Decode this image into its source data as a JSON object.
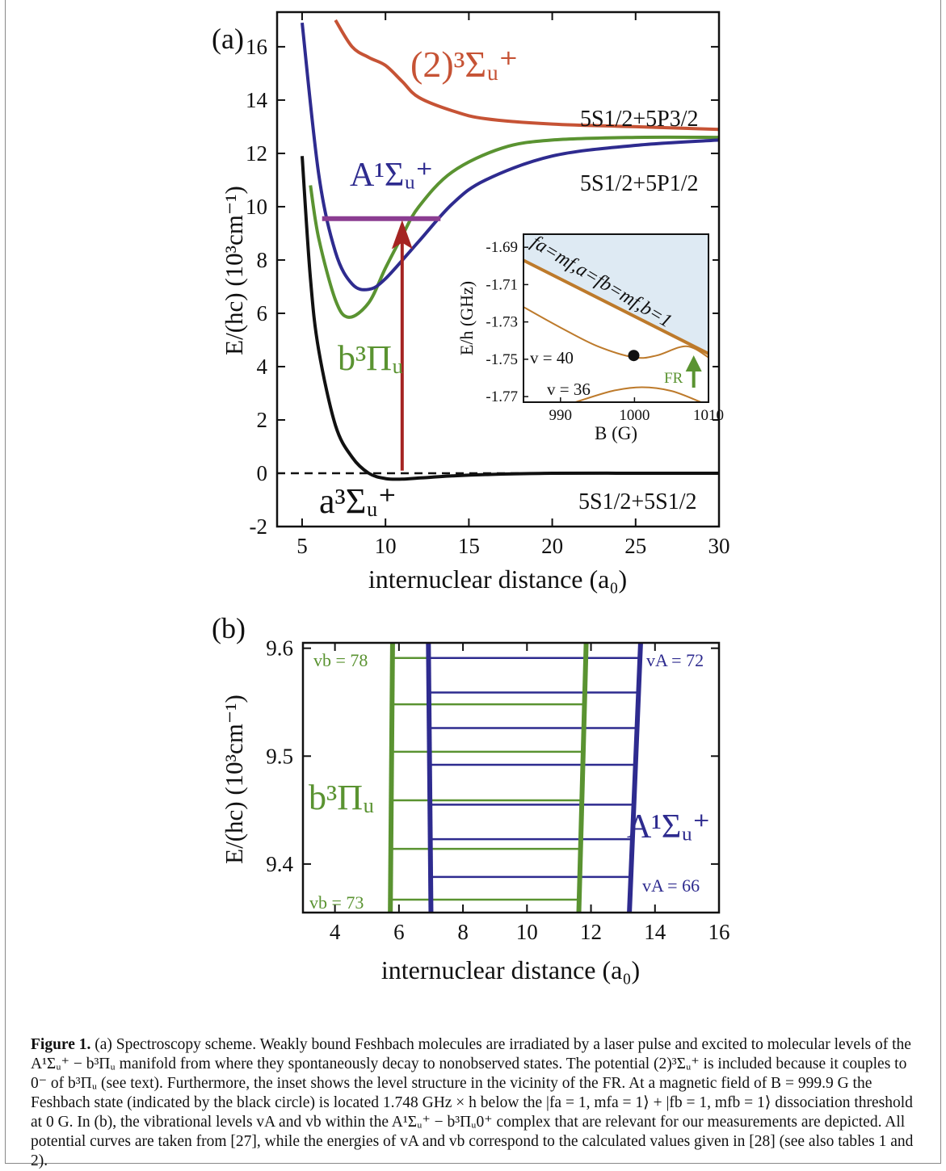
{
  "colors": {
    "black": "#111111",
    "red": "#c65335",
    "green": "#5a9331",
    "blue": "#2e2b8f",
    "purple": "#8b3d91",
    "arrow": "#a52422",
    "inset_fill": "#deeaf3",
    "inset_line": "#bd7a2b"
  },
  "figure": {
    "panel_a": {
      "label": "(a)",
      "xlabel": "internuclear distance (a₀)",
      "ylabel": "E/(hc) (10³cm⁻¹)",
      "xticks": [
        "5",
        "10",
        "15",
        "20",
        "25",
        "30"
      ],
      "yticks": [
        "-2",
        "0",
        "2",
        "4",
        "6",
        "8",
        "10",
        "12",
        "14",
        "16"
      ],
      "curve_labels": {
        "red": "(2)³Σᵤ⁺",
        "blue": "A¹Σᵤ⁺",
        "green": "b³Πᵤ",
        "black": "a³Σᵤ⁺"
      },
      "asymptotes": [
        "5S1/2+5P3/2",
        "5S1/2+5P1/2",
        "5S1/2+5S1/2"
      ]
    },
    "inset": {
      "xlabel": "B (G)",
      "ylabel": "E/h (GHz)",
      "xticks": [
        "990",
        "1000",
        "1010"
      ],
      "yticks": [
        "-1.69",
        "-1.71",
        "-1.73",
        "-1.75",
        "-1.77"
      ],
      "threshold_label": "fa=mf,a=fb=mf,b=1",
      "v40": "v = 40",
      "v36": "v = 36",
      "fr": "FR"
    },
    "panel_b": {
      "label": "(b)",
      "xlabel": "internuclear distance (a₀)",
      "ylabel": "E/(hc) (10³cm⁻¹)",
      "xticks": [
        "4",
        "6",
        "8",
        "10",
        "12",
        "14",
        "16"
      ],
      "yticks": [
        "9.4",
        "9.5",
        "9.6"
      ],
      "vb_top": "vb = 78",
      "vb_bottom": "vb = 73",
      "vA_top": "vA = 72",
      "vA_bottom": "vA = 66",
      "green_label": "b³Πᵤ",
      "blue_label": "A¹Σᵤ⁺"
    }
  },
  "chart_data": [
    {
      "type": "line",
      "title": "(a)",
      "xlabel": "internuclear distance (a0)",
      "ylabel": "E/(hc) (10^3 cm^-1)",
      "xlim": [
        3.5,
        30
      ],
      "ylim": [
        -2,
        17.3
      ],
      "series": [
        {
          "name": "a3Σu+",
          "x": [
            5,
            5.5,
            6,
            7,
            8,
            9,
            10,
            11,
            12,
            14,
            16,
            20,
            25,
            30
          ],
          "y": [
            11.9,
            7.3,
            4.6,
            1.8,
            0.6,
            0.0,
            -0.2,
            -0.22,
            -0.18,
            -0.1,
            -0.05,
            0.0,
            0.0,
            0.0
          ]
        },
        {
          "name": "b3Πu",
          "x": [
            5.5,
            6,
            7,
            7.8,
            9,
            10,
            11,
            12,
            14,
            17,
            20,
            25,
            30
          ],
          "y": [
            10.8,
            8.8,
            6.5,
            5.85,
            6.4,
            7.7,
            8.9,
            10.0,
            11.3,
            12.2,
            12.5,
            12.6,
            12.6
          ]
        },
        {
          "name": "A1Σu+",
          "x": [
            5,
            6,
            7,
            8,
            9,
            10,
            12,
            14,
            16,
            20,
            25,
            30
          ],
          "y": [
            16.9,
            11.2,
            8.3,
            7.1,
            6.9,
            7.3,
            8.7,
            10.1,
            11.0,
            11.9,
            12.3,
            12.5
          ]
        },
        {
          "name": "(2)3Σu+",
          "x": [
            7,
            8,
            9,
            10,
            11,
            12,
            14,
            16,
            20,
            25,
            30
          ],
          "y": [
            17.0,
            16.0,
            15.6,
            15.3,
            14.7,
            14.1,
            13.6,
            13.3,
            13.1,
            13.0,
            12.9
          ]
        }
      ],
      "hline": {
        "y": 9.55,
        "x": [
          6.2,
          13.3
        ]
      },
      "arrow": {
        "x": 11.0,
        "y": [
          0.1,
          9.5
        ]
      },
      "threshold_dashed_y": 0
    },
    {
      "type": "line",
      "title": "inset",
      "xlabel": "B (G)",
      "ylabel": "E/h (GHz)",
      "xlim": [
        985,
        1010
      ],
      "ylim": [
        -1.773,
        -1.683
      ],
      "series": [
        {
          "name": "fa=mf,a=fb=mf,b=1",
          "x": [
            985,
            1010
          ],
          "y": [
            -1.697,
            -1.747
          ]
        },
        {
          "name": "v = 40",
          "x": [
            985,
            990,
            995,
            1000,
            1003,
            1007,
            1010
          ],
          "y": [
            -1.722,
            -1.733,
            -1.743,
            -1.749,
            -1.748,
            -1.743,
            -1.749
          ]
        },
        {
          "name": "v = 36",
          "x": [
            992,
            997,
            1001,
            1005,
            1009
          ],
          "y": [
            -1.773,
            -1.767,
            -1.765,
            -1.767,
            -1.773
          ]
        }
      ],
      "marker": {
        "x": 999.9,
        "y": -1.748
      },
      "fr_arrow_x": 1008
    },
    {
      "type": "line",
      "title": "(b)",
      "xlabel": "internuclear distance (a0)",
      "ylabel": "E/(hc) (10^3 cm^-1)",
      "xlim": [
        3,
        16
      ],
      "ylim": [
        9.355,
        9.605
      ],
      "green_levels": [
        9.367,
        9.414,
        9.459,
        9.504,
        9.548,
        9.591
      ],
      "blue_levels": [
        9.388,
        9.423,
        9.455,
        9.492,
        9.526,
        9.559,
        9.591
      ]
    }
  ],
  "caption": {
    "label": "Figure 1.",
    "text": "(a) Spectroscopy scheme. Weakly bound Feshbach molecules are irradiated by a laser pulse and excited to molecular levels of the A¹Σᵤ⁺ − b³Πᵤ manifold from where they spontaneously decay to nonobserved states. The potential (2)³Σᵤ⁺ is included because it couples to 0⁻ of b³Πᵤ (see text). Furthermore, the inset shows the level structure in the vicinity of the FR. At a magnetic field of B = 999.9 G the Feshbach state (indicated by the black circle) is located 1.748 GHz × h below the |fa = 1, mfa = 1⟩ + |fb = 1, mfb = 1⟩ dissociation threshold at 0 G. In (b), the vibrational levels vA and vb within the A¹Σᵤ⁺ − b³Πᵤ0⁺ complex that are relevant for our measurements are depicted. All potential curves are taken from [27], while the energies of vA and vb correspond to the calculated values given in [28] (see also tables 1 and 2)."
  }
}
